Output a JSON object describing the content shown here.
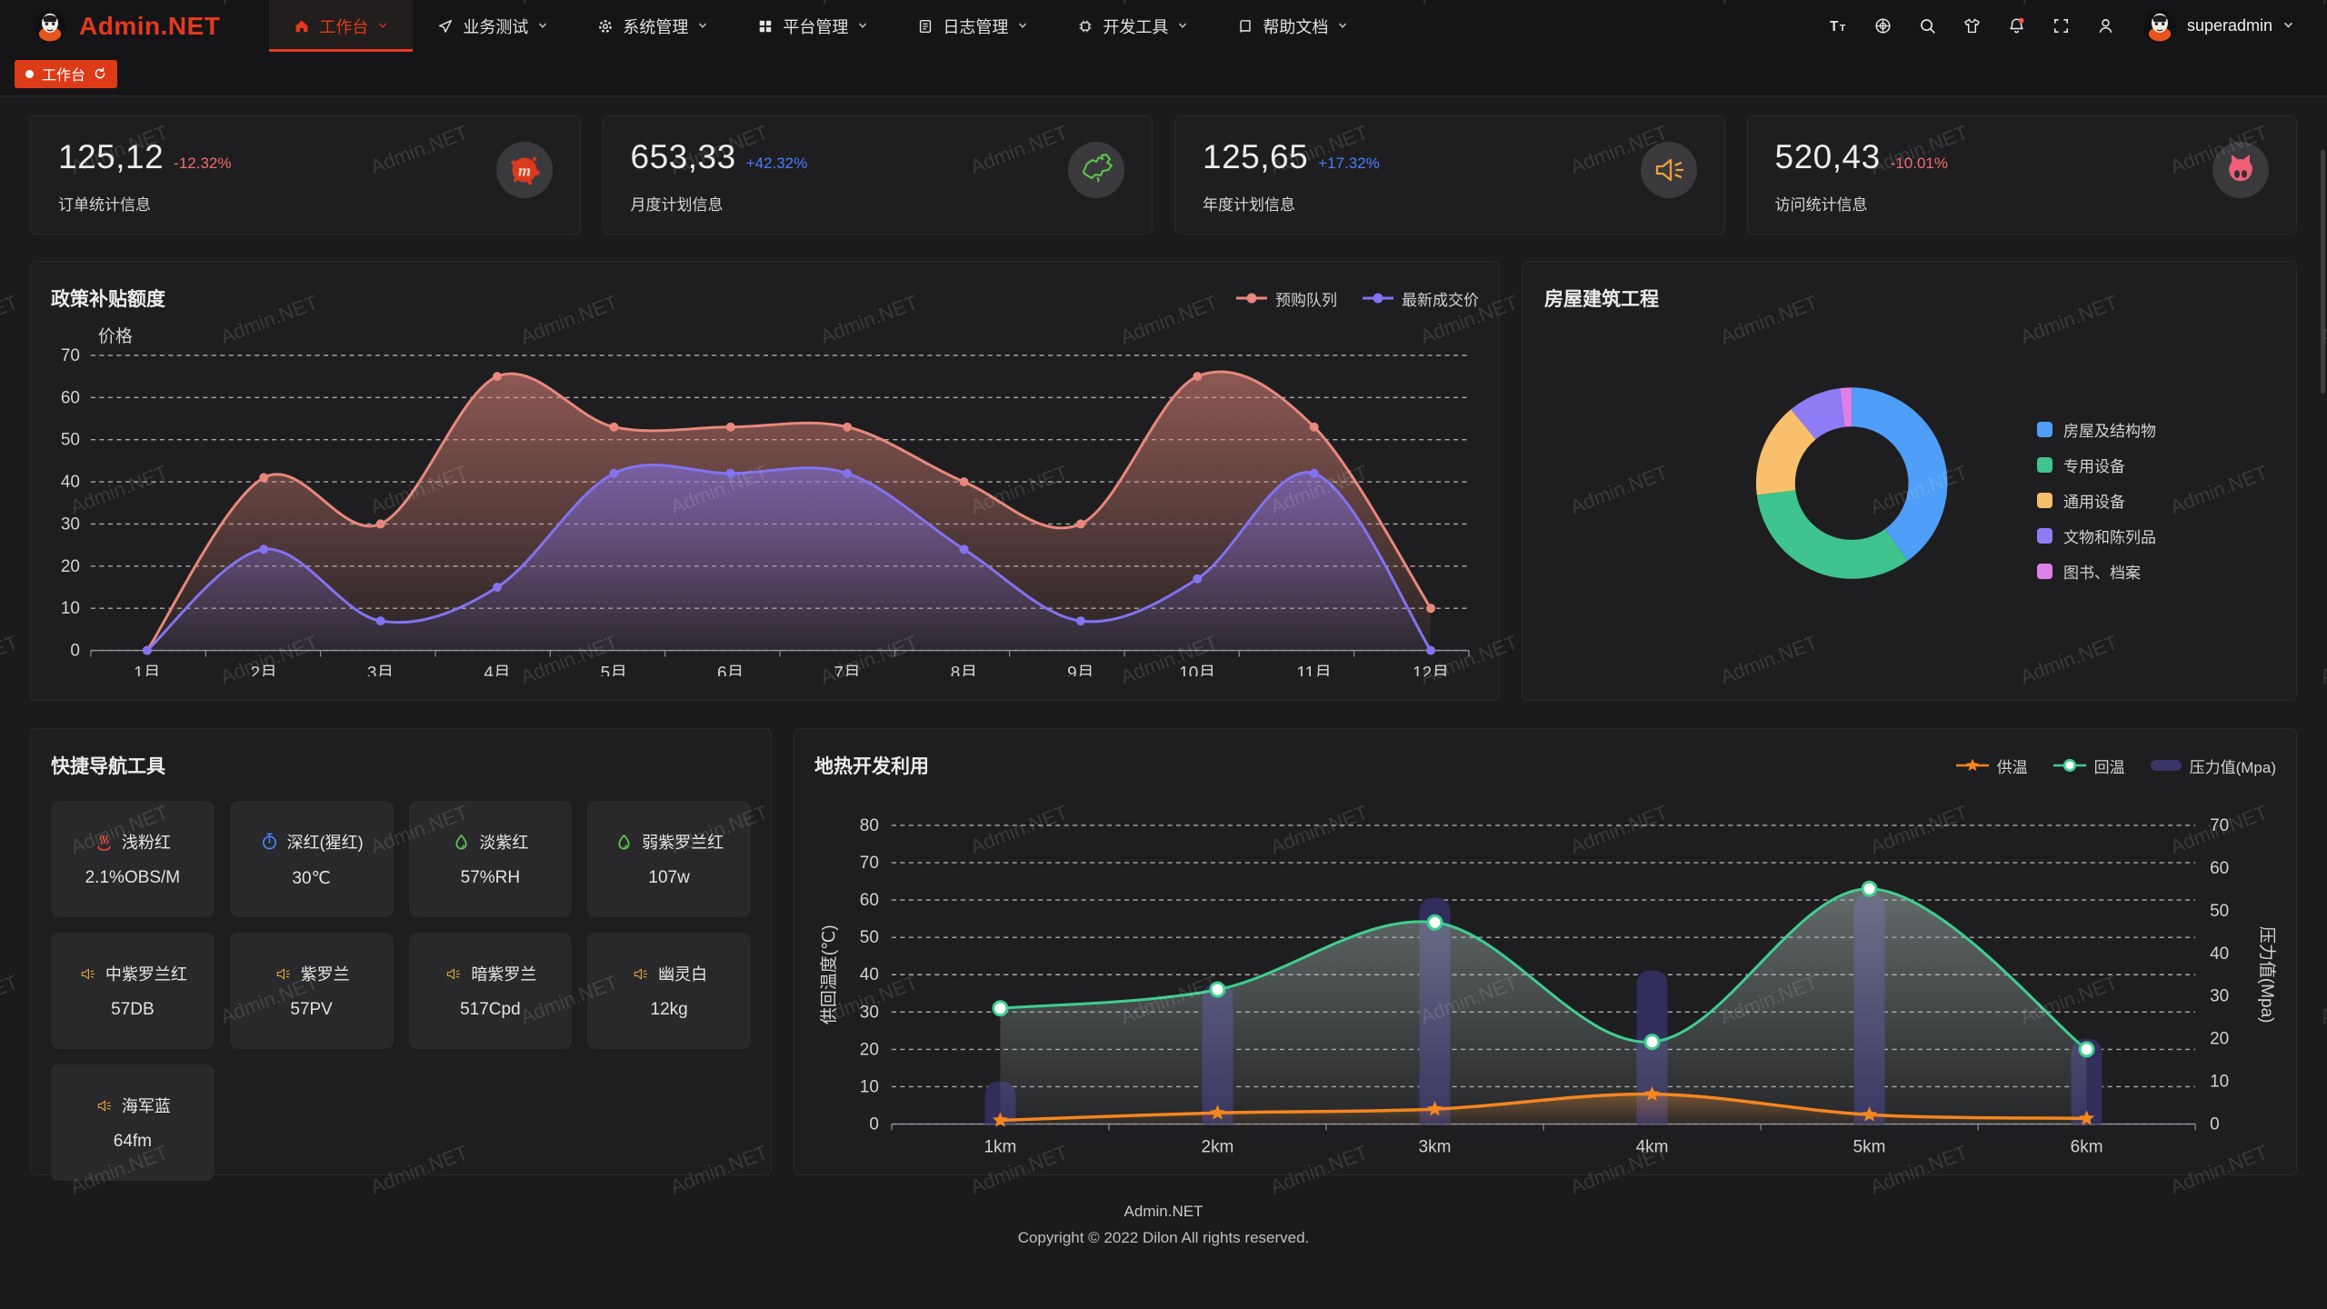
{
  "watermark": "Admin.NET",
  "colors": {
    "accent_red": "#e5391f",
    "tab_red": "#dd3a17",
    "delta_down": "#f56c6c",
    "delta_up": "#4a7dfa"
  },
  "navbar": {
    "logo": "Admin.NET",
    "menu": [
      {
        "label": "工作台",
        "icon": "home-icon",
        "active": true
      },
      {
        "label": "业务测试",
        "icon": "send-icon",
        "active": false
      },
      {
        "label": "系统管理",
        "icon": "gear-icon",
        "active": false
      },
      {
        "label": "平台管理",
        "icon": "grid-icon",
        "active": false
      },
      {
        "label": "日志管理",
        "icon": "log-icon",
        "active": false
      },
      {
        "label": "开发工具",
        "icon": "chip-icon",
        "active": false
      },
      {
        "label": "帮助文档",
        "icon": "book-icon",
        "active": false
      }
    ],
    "action_icons": [
      "font-size-icon",
      "language-icon",
      "search-icon",
      "theme-icon",
      "notification-icon",
      "fullscreen-icon",
      "user-icon"
    ],
    "username": "superadmin"
  },
  "tabbar": {
    "tabs": [
      {
        "label": "工作台",
        "active": true
      }
    ]
  },
  "stat_cards": [
    {
      "value": "125,12",
      "delta": "-12.32%",
      "trend": "down",
      "label": "订单统计信息",
      "icon": "meetup-icon",
      "icon_color": "#da3a1d"
    },
    {
      "value": "653,33",
      "delta": "+42.32%",
      "trend": "up",
      "label": "月度计划信息",
      "icon": "china-map-icon",
      "icon_color": "#5ec74e"
    },
    {
      "value": "125,65",
      "delta": "+17.32%",
      "trend": "up",
      "label": "年度计划信息",
      "icon": "speaker-icon",
      "icon_color": "#efa13c"
    },
    {
      "value": "520,43",
      "delta": "-10.01%",
      "trend": "down",
      "label": "访问统计信息",
      "icon": "cat-icon",
      "icon_color": "#ef6077"
    }
  ],
  "chart_data": [
    {
      "id": "subsidy",
      "type": "area",
      "title": "政策补贴额度",
      "ylabel": "价格",
      "ylim": [
        0,
        70
      ],
      "grid": "dashed",
      "legend_position": "top-right",
      "categories": [
        "1月",
        "2月",
        "3月",
        "4月",
        "5月",
        "6月",
        "7月",
        "8月",
        "9月",
        "10月",
        "11月",
        "12月"
      ],
      "series": [
        {
          "name": "预购队列",
          "color": "#e8887c",
          "values": [
            0,
            41,
            30,
            65,
            53,
            53,
            53,
            40,
            30,
            65,
            53,
            10
          ]
        },
        {
          "name": "最新成交价",
          "color": "#8273f0",
          "values": [
            0,
            24,
            7,
            15,
            42,
            42,
            42,
            24,
            7,
            17,
            42,
            0
          ]
        }
      ]
    },
    {
      "id": "building",
      "type": "pie",
      "title": "房屋建筑工程",
      "legend_position": "right",
      "slices": [
        {
          "label": "房屋及结构物",
          "value": 40,
          "color": "#4f9ef7"
        },
        {
          "label": "专用设备",
          "value": 33,
          "color": "#3ec48c"
        },
        {
          "label": "通用设备",
          "value": 16,
          "color": "#f8c06d"
        },
        {
          "label": "文物和陈列品",
          "value": 9,
          "color": "#8d7cf3"
        },
        {
          "label": "图书、档案",
          "value": 2,
          "color": "#df80e8"
        }
      ]
    },
    {
      "id": "geothermal",
      "type": "line-bar",
      "title": "地热开发利用",
      "categories": [
        "1km",
        "2km",
        "3km",
        "4km",
        "5km",
        "6km"
      ],
      "ylabel_left": "供回温度(℃)",
      "ylim_left": [
        0,
        80
      ],
      "ylabel_right": "压力值(Mpa)",
      "ylim_right": [
        0,
        70
      ],
      "grid": "dashed",
      "legend_position": "top-right",
      "series": [
        {
          "name": "供温",
          "type": "line",
          "marker": "star",
          "axis": "left",
          "color": "#f5861f",
          "values": [
            1,
            3,
            4,
            8,
            2.5,
            1.5
          ]
        },
        {
          "name": "回温",
          "type": "line",
          "marker": "circle",
          "axis": "left",
          "color": "#3ecf8e",
          "values": [
            31,
            36,
            54,
            22,
            63,
            20
          ]
        },
        {
          "name": "压力值(Mpa)",
          "type": "bar",
          "axis": "right",
          "color": "#393566",
          "values": [
            10,
            33,
            53,
            36,
            54,
            20
          ]
        }
      ]
    }
  ],
  "quick_nav": {
    "title": "快捷导航工具",
    "items": [
      {
        "label": "浅粉红",
        "value": "2.1%OBS/M",
        "icon": "hot-springs-icon",
        "icon_color": "#e04836"
      },
      {
        "label": "深红(猩红)",
        "value": "30℃",
        "icon": "thermometer-icon",
        "icon_color": "#4c84ff"
      },
      {
        "label": "淡紫红",
        "value": "57%RH",
        "icon": "water-drop-icon",
        "icon_color": "#5ec74e"
      },
      {
        "label": "弱紫罗兰红",
        "value": "107w",
        "icon": "water-drop-icon",
        "icon_color": "#5ec74e"
      },
      {
        "label": "中紫罗兰红",
        "value": "57DB",
        "icon": "speaker-icon",
        "icon_color": "#e2a63d"
      },
      {
        "label": "紫罗兰",
        "value": "57PV",
        "icon": "speaker-icon",
        "icon_color": "#e2a63d"
      },
      {
        "label": "暗紫罗兰",
        "value": "517Cpd",
        "icon": "speaker-icon",
        "icon_color": "#e2a63d"
      },
      {
        "label": "幽灵白",
        "value": "12kg",
        "icon": "speaker-icon",
        "icon_color": "#e2a63d"
      },
      {
        "label": "海军蓝",
        "value": "64fm",
        "icon": "speaker-icon",
        "icon_color": "#e2a63d"
      }
    ]
  },
  "footer": {
    "line1": "Admin.NET",
    "line2": "Copyright © 2022 Dilon All rights reserved."
  }
}
